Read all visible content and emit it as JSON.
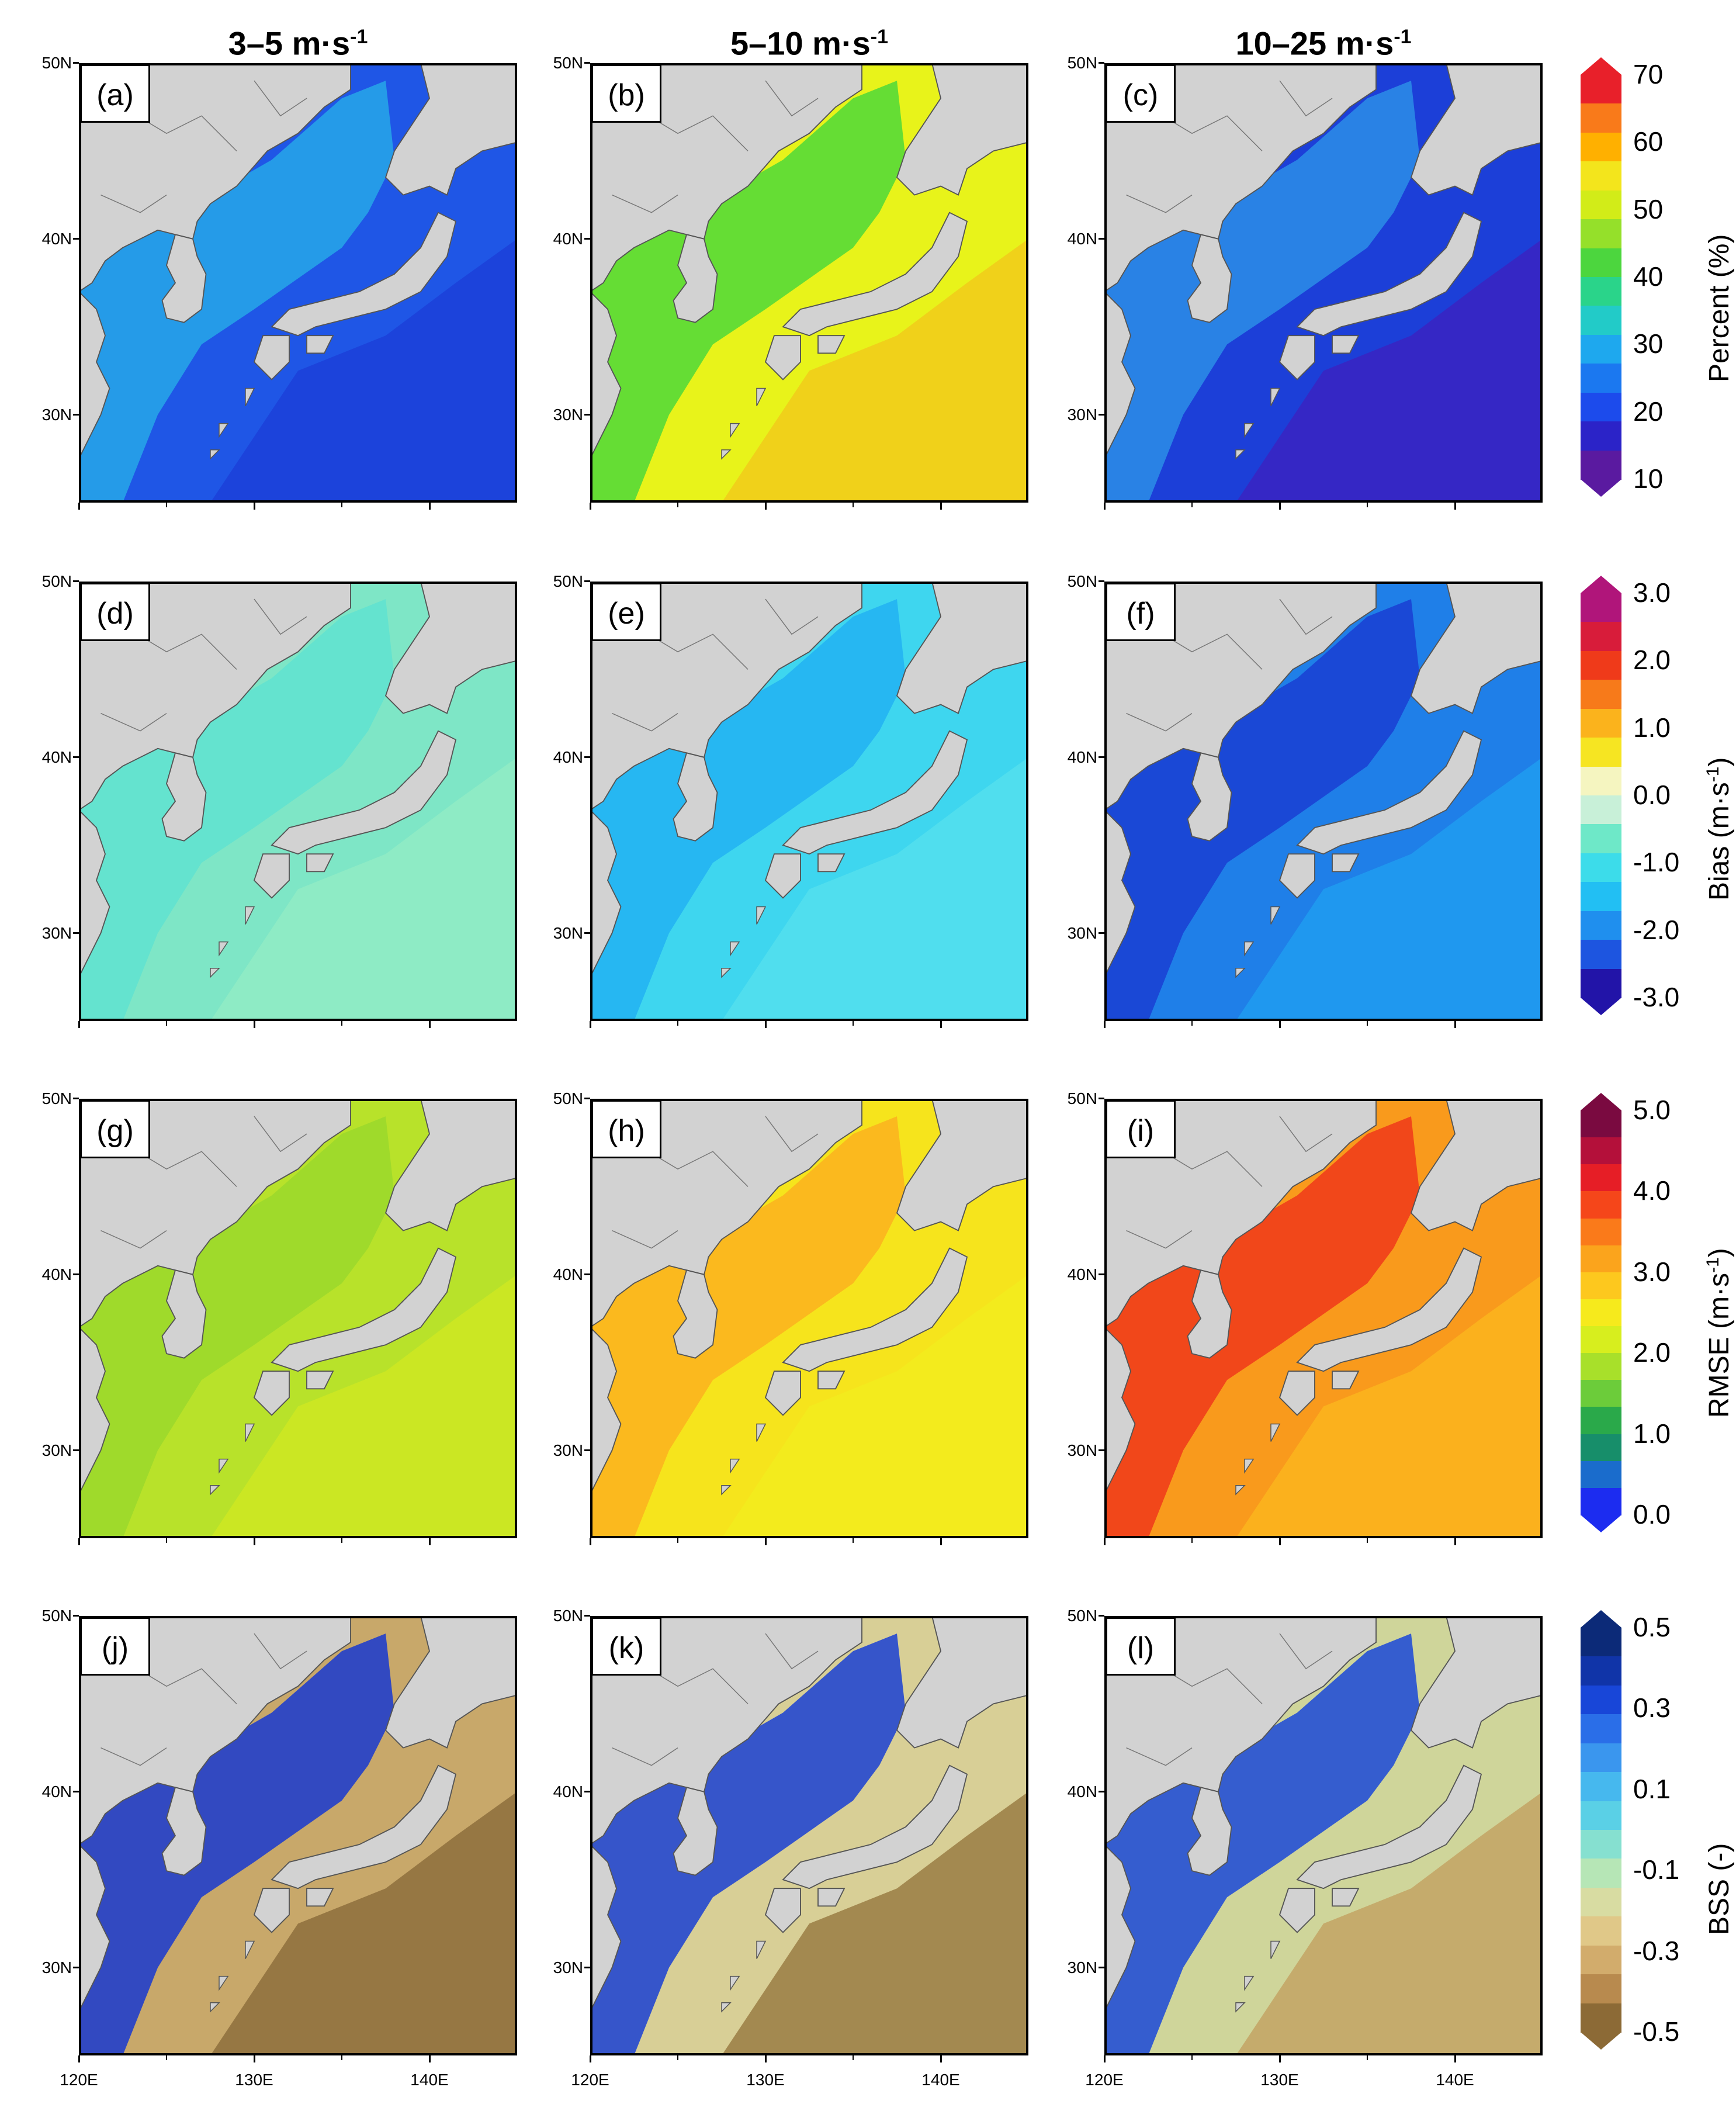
{
  "column_titles": [
    {
      "main": "3–5 m·s",
      "sup": "-1"
    },
    {
      "main": "5–10 m·s",
      "sup": "-1"
    },
    {
      "main": "10–25 m·s",
      "sup": "-1"
    }
  ],
  "axes": {
    "lat_labels": [
      "50N",
      "40N",
      "30N"
    ],
    "lon_labels": [
      "120E",
      "130E",
      "140E"
    ]
  },
  "rows": [
    {
      "panels": [
        "(a)",
        "(b)",
        "(c)"
      ],
      "colorbar": {
        "title": "Percent (%)",
        "title_sup": "",
        "tick_labels": [
          "70",
          "60",
          "50",
          "40",
          "30",
          "20",
          "10"
        ],
        "colors": [
          "#e8202a",
          "#f97a1a",
          "#ffb000",
          "#f3e51c",
          "#d2ec18",
          "#95e02a",
          "#4cd63e",
          "#2ad48a",
          "#22cbc8",
          "#1ea8ee",
          "#1b78f0",
          "#1c4bec",
          "#2b23c8",
          "#5a1aa0"
        ]
      },
      "panel_colors": [
        {
          "ocean": "#1f56e6",
          "shelf": "#27a7e8",
          "deep": "#1c3fd8"
        },
        {
          "ocean": "#e8f31a",
          "shelf": "#4ed83a",
          "deep": "#f1c81a"
        },
        {
          "ocean": "#1c3fd8",
          "shelf": "#2b8ee8",
          "deep": "#3c22c0"
        }
      ]
    },
    {
      "panels": [
        "(d)",
        "(e)",
        "(f)"
      ],
      "colorbar": {
        "title": "Bias (m·s",
        "title_sup": "-1",
        "title_end": ")",
        "tick_labels": [
          "3.0",
          "2.0",
          "1.0",
          "0.0",
          "-1.0",
          "-2.0",
          "-3.0"
        ],
        "colors": [
          "#b0157a",
          "#d81c3a",
          "#ef3a1a",
          "#f77a1a",
          "#fbb31c",
          "#f6e522",
          "#f5f5c0",
          "#c8f0d8",
          "#6ee8c8",
          "#3cdcea",
          "#22bff3",
          "#1f8fee",
          "#1d55e0",
          "#2214a8"
        ]
      },
      "panel_colors": [
        {
          "ocean": "#7ee6c6",
          "shelf": "#5fe2d0",
          "deep": "#92ecc4"
        },
        {
          "ocean": "#3ed6ef",
          "shelf": "#22b2f2",
          "deep": "#55e0ee"
        },
        {
          "ocean": "#1f7fe8",
          "shelf": "#1a3ed2",
          "deep": "#1f9ff0"
        }
      ]
    },
    {
      "panels": [
        "(g)",
        "(h)",
        "(i)"
      ],
      "colorbar": {
        "title": "RMSE (m·s",
        "title_sup": "-1",
        "title_end": ")",
        "tick_labels": [
          "5.0",
          "4.0",
          "3.0",
          "2.0",
          "1.0",
          "0.0"
        ],
        "colors": [
          "#7a0a40",
          "#b4103a",
          "#e61e26",
          "#f5461a",
          "#fa7a1a",
          "#fba41c",
          "#fdc81e",
          "#f6ea1c",
          "#d7ee1e",
          "#a8e02a",
          "#6ccc3a",
          "#2aa94a",
          "#178e6a",
          "#1a6ccc",
          "#1c2cf0"
        ]
      },
      "panel_colors": [
        {
          "ocean": "#b8e22a",
          "shelf": "#9ad82c",
          "deep": "#d0e822"
        },
        {
          "ocean": "#f6e41c",
          "shelf": "#fbb11e",
          "deep": "#f2ec1e"
        },
        {
          "ocean": "#f99a1c",
          "shelf": "#f0381a",
          "deep": "#fbb61e"
        }
      ]
    },
    {
      "panels": [
        "(j)",
        "(k)",
        "(l)"
      ],
      "colorbar": {
        "title": "BSS (-)",
        "title_sup": "",
        "tick_labels": [
          "0.5",
          "0.3",
          "0.1",
          "-0.1",
          "-0.3",
          "-0.5"
        ],
        "colors": [
          "#0c2a78",
          "#1034a8",
          "#1846d8",
          "#2a6ee8",
          "#3a96ee",
          "#46b8ee",
          "#5ad0e6",
          "#86e0d0",
          "#b6e6b6",
          "#d8dca2",
          "#e0c888",
          "#d2ac6c",
          "#b88a4e",
          "#8c6a36"
        ]
      },
      "panel_colors": [
        {
          "ocean": "#c8a86a",
          "shelf": "#1838d0",
          "deep": "#8a6a3a"
        },
        {
          "ocean": "#d8cf96",
          "shelf": "#1a40d4",
          "deep": "#96773e"
        },
        {
          "ocean": "#cfd59a",
          "shelf": "#1a48d8",
          "deep": "#c2a060"
        }
      ]
    }
  ]
}
